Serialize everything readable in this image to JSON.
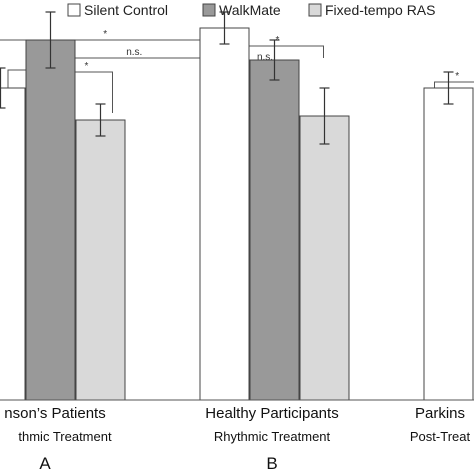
{
  "chart_data": {
    "type": "bar",
    "legend": [
      {
        "name": "Silent Control",
        "color": "#ffffff"
      },
      {
        "name": "WalkMate",
        "color": "#999999"
      },
      {
        "name": "Fixed-tempo RAS",
        "color": "#d9d9d9"
      }
    ],
    "legend_position": "top",
    "groups": [
      {
        "label": "nson’s Patients",
        "sublabel": "thmic Treatment",
        "letter": "A"
      },
      {
        "label": "Healthy Participants",
        "sublabel": "Rhythmic Treatment",
        "letter": "B"
      },
      {
        "label": "Parkins",
        "sublabel": "Post-Treat",
        "letter": ""
      }
    ],
    "series": [
      {
        "name": "Silent Control",
        "values": [
          0.78,
          0.93,
          0.78
        ],
        "errors": [
          0.05,
          0.04,
          0.04
        ]
      },
      {
        "name": "WalkMate",
        "values": [
          0.9,
          0.85,
          null
        ],
        "errors": [
          0.07,
          0.05,
          null
        ]
      },
      {
        "name": "Fixed-tempo RAS",
        "values": [
          0.7,
          0.71,
          null
        ],
        "errors": [
          0.04,
          0.07,
          null
        ]
      }
    ],
    "ylim": [
      0,
      1
    ],
    "significance": [
      {
        "group": 0,
        "from": "before",
        "to": 1,
        "text": "*"
      },
      {
        "group": 0,
        "from": 1,
        "to": 2,
        "text": "*"
      },
      {
        "group": 1,
        "from": 0,
        "to": 1,
        "text": "n.s."
      },
      {
        "group": 1,
        "from": 0,
        "to": 2,
        "text": "*"
      },
      {
        "span": "A-B",
        "text": "*"
      },
      {
        "span": "A-B-inner",
        "text": "n.s."
      },
      {
        "group": 2,
        "from": 0,
        "to": "after",
        "text": "*"
      }
    ]
  }
}
